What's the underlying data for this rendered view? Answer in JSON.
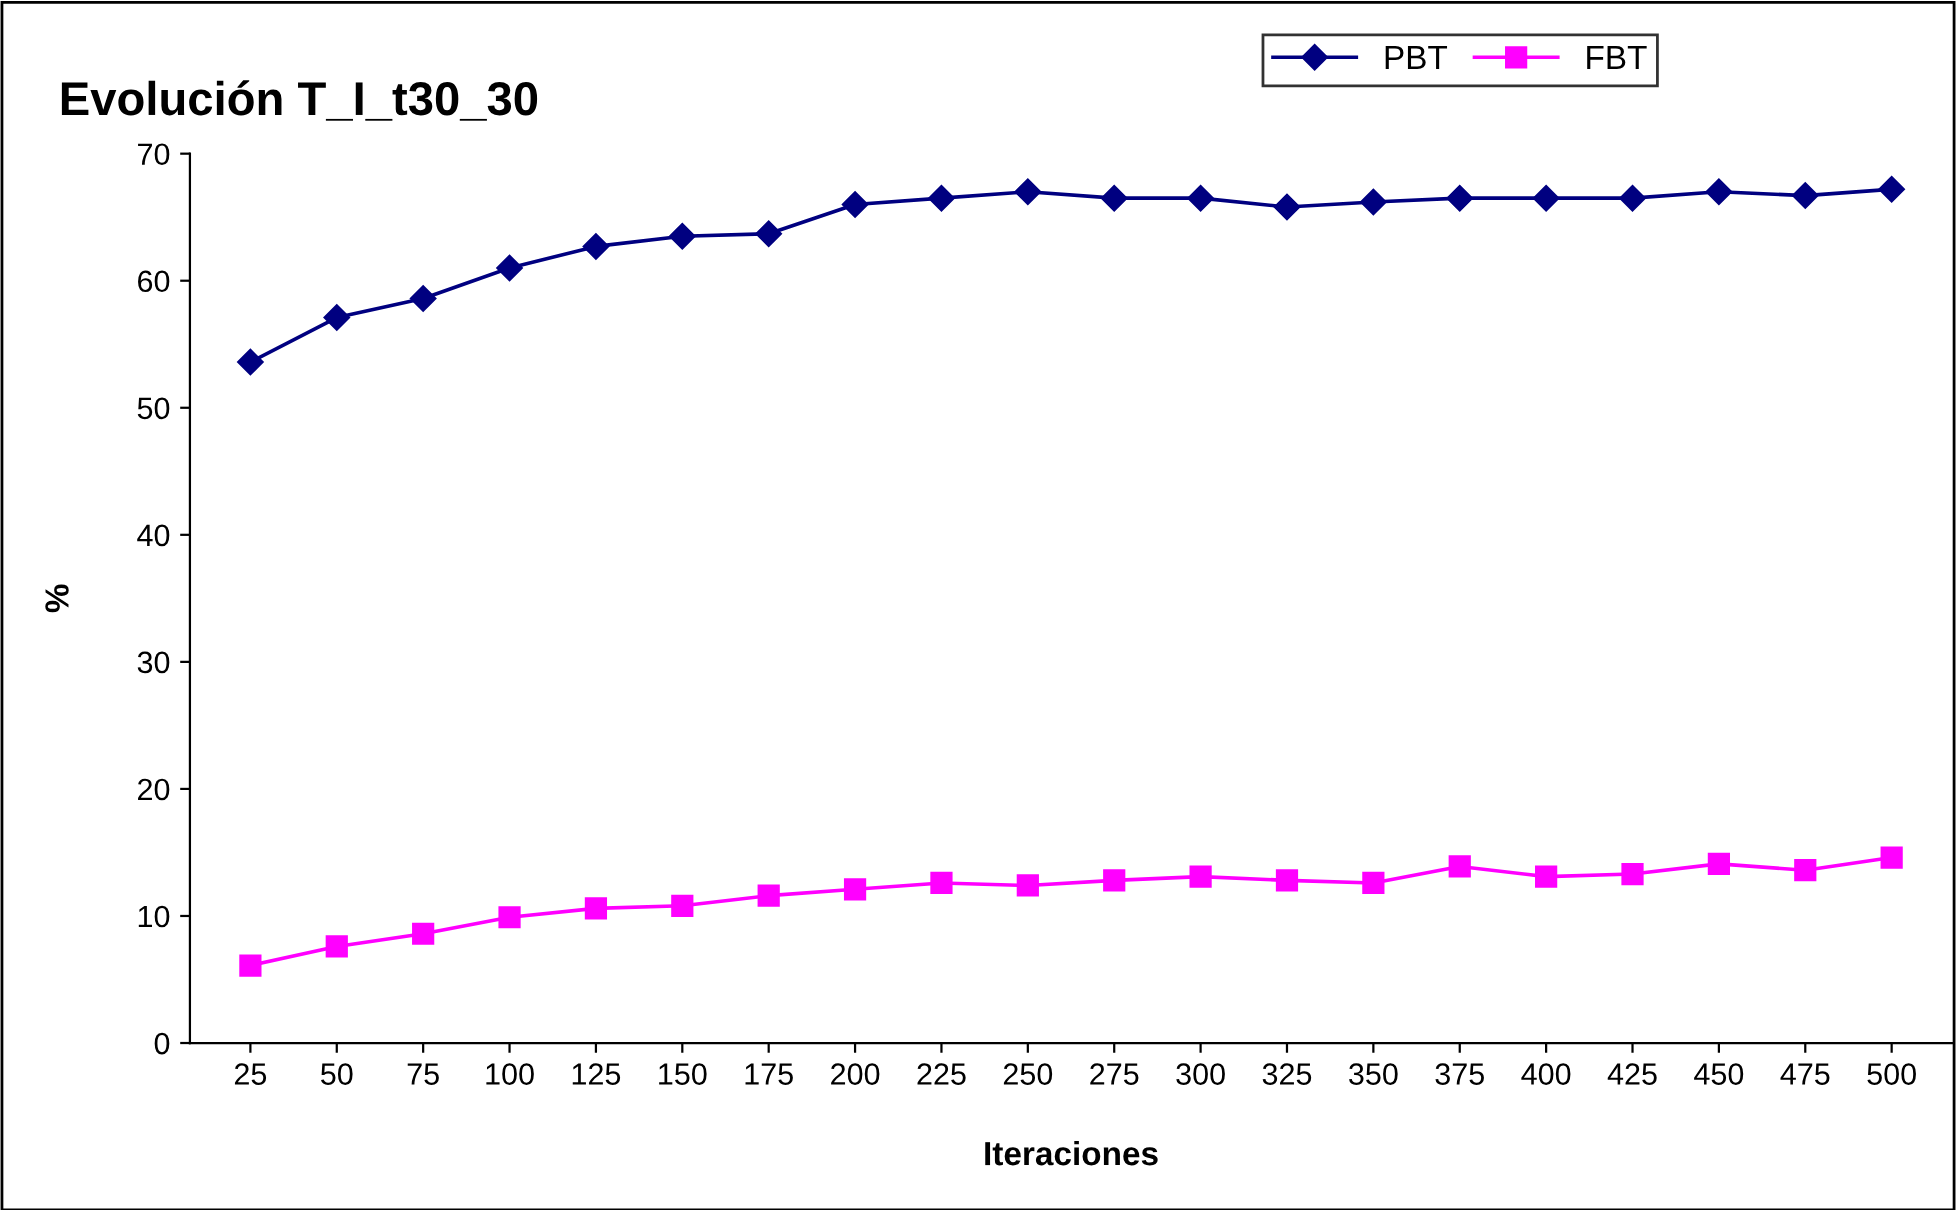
{
  "chart_data": {
    "type": "line",
    "title": "Evolución T_I_t30_30",
    "xlabel": "Iteraciones",
    "ylabel": "%",
    "categories": [
      "25",
      "50",
      "75",
      "100",
      "125",
      "150",
      "175",
      "200",
      "225",
      "250",
      "275",
      "300",
      "325",
      "350",
      "375",
      "400",
      "425",
      "450",
      "475",
      "500"
    ],
    "series": [
      {
        "name": "PBT",
        "color": "#000080",
        "marker": "diamond",
        "values": [
          53.6,
          57.1,
          58.6,
          61.0,
          62.7,
          63.5,
          63.7,
          66.0,
          66.5,
          67.0,
          66.5,
          66.5,
          65.8,
          66.2,
          66.5,
          66.5,
          66.5,
          67.0,
          66.7,
          67.2
        ]
      },
      {
        "name": "FBT",
        "color": "#ff00ff",
        "marker": "square",
        "values": [
          6.1,
          7.6,
          8.6,
          9.9,
          10.6,
          10.8,
          11.6,
          12.1,
          12.6,
          12.4,
          12.8,
          13.1,
          12.8,
          12.6,
          13.9,
          13.1,
          13.3,
          14.1,
          13.6,
          14.6
        ]
      }
    ],
    "ylim": [
      0,
      70
    ],
    "yticks": [
      0,
      10,
      20,
      30,
      40,
      50,
      60,
      70
    ],
    "grid": false,
    "legend": "top right",
    "line_style": "solid"
  }
}
